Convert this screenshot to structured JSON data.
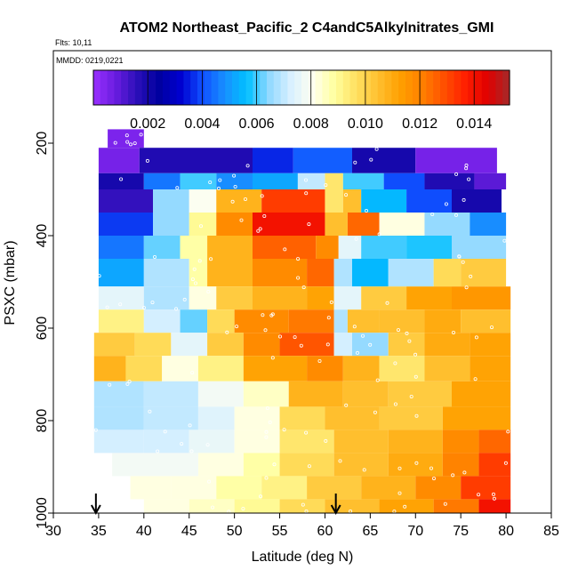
{
  "chart_data": {
    "type": "heatmap",
    "title": "ATOM2 Northeast_Pacific_2 C4andC5Alkylnitrates_GMI",
    "flights_label": "Flts: 10,11",
    "dates_label": "MMDD: 0219,0221",
    "xlabel": "Latitude (deg N)",
    "ylabel": "PSXC (mbar)",
    "xlim": [
      30,
      85
    ],
    "ylim": [
      1000,
      0
    ],
    "x_ticks": [
      "30",
      "35",
      "40",
      "45",
      "50",
      "55",
      "60",
      "65",
      "70",
      "75",
      "80",
      "85"
    ],
    "y_ticks": [
      "200",
      "400",
      "600",
      "800",
      "1000"
    ],
    "colorbar": {
      "range": [
        0,
        0.0153
      ],
      "ticks": [
        "0.002",
        "0.004",
        "0.006",
        "0.008",
        "0.010",
        "0.012",
        "0.014"
      ],
      "colors": [
        "#9a30ff",
        "#6a1de0",
        "#2a0fb8",
        "#0000a0",
        "#0000d0",
        "#1050ff",
        "#1890ff",
        "#00c0ff",
        "#90d8ff",
        "#d8f0ff",
        "#fffff0",
        "#ffffa0",
        "#ffe060",
        "#ffc030",
        "#ffa000",
        "#ff8000",
        "#ff5000",
        "#ff1e00",
        "#e00000",
        "#a52a2a"
      ]
    },
    "arrows": [
      {
        "lat": 34.7
      },
      {
        "lat": 61.2
      }
    ],
    "rows": [
      {
        "p0": 170,
        "p1": 210,
        "segs": [
          {
            "x0": 36.0,
            "x1": 40.0,
            "v": 0.0005
          }
        ]
      },
      {
        "p0": 210,
        "p1": 265,
        "segs": [
          {
            "x0": 35.0,
            "x1": 39.5,
            "v": 0.0006
          },
          {
            "x0": 39.5,
            "x1": 52.0,
            "v": 0.0018
          },
          {
            "x0": 52.0,
            "x1": 56.5,
            "v": 0.0036
          },
          {
            "x0": 56.5,
            "x1": 63.0,
            "v": 0.0042
          },
          {
            "x0": 63.0,
            "x1": 70.0,
            "v": 0.002
          },
          {
            "x0": 70.0,
            "x1": 79.0,
            "v": 0.0006
          }
        ]
      },
      {
        "p0": 265,
        "p1": 300,
        "segs": [
          {
            "x0": 35.0,
            "x1": 40.0,
            "v": 0.002
          },
          {
            "x0": 40.0,
            "x1": 44.0,
            "v": 0.0045
          },
          {
            "x0": 44.0,
            "x1": 48.0,
            "v": 0.006
          },
          {
            "x0": 48.0,
            "x1": 52.0,
            "v": 0.0048
          },
          {
            "x0": 52.0,
            "x1": 57.0,
            "v": 0.0052
          },
          {
            "x0": 57.0,
            "x1": 60.0,
            "v": 0.007
          },
          {
            "x0": 60.0,
            "x1": 62.0,
            "v": 0.0095
          },
          {
            "x0": 62.0,
            "x1": 66.5,
            "v": 0.006
          },
          {
            "x0": 66.5,
            "x1": 71.0,
            "v": 0.004
          },
          {
            "x0": 71.0,
            "x1": 76.5,
            "v": 0.0018
          },
          {
            "x0": 76.5,
            "x1": 80.0,
            "v": 0.001
          }
        ]
      },
      {
        "p0": 300,
        "p1": 350,
        "segs": [
          {
            "x0": 35.0,
            "x1": 41.0,
            "v": 0.0015
          },
          {
            "x0": 41.0,
            "x1": 45.0,
            "v": 0.0065
          },
          {
            "x0": 45.0,
            "x1": 48.0,
            "v": 0.008
          },
          {
            "x0": 48.0,
            "x1": 53.0,
            "v": 0.0108
          },
          {
            "x0": 53.0,
            "x1": 60.0,
            "v": 0.0132
          },
          {
            "x0": 60.0,
            "x1": 62.0,
            "v": 0.0095
          },
          {
            "x0": 62.0,
            "x1": 64.0,
            "v": 0.0105
          },
          {
            "x0": 64.0,
            "x1": 69.0,
            "v": 0.0055
          },
          {
            "x0": 69.0,
            "x1": 74.0,
            "v": 0.004
          },
          {
            "x0": 74.0,
            "x1": 79.5,
            "v": 0.002
          }
        ]
      },
      {
        "p0": 350,
        "p1": 400,
        "segs": [
          {
            "x0": 35.0,
            "x1": 41.0,
            "v": 0.0038
          },
          {
            "x0": 41.0,
            "x1": 45.0,
            "v": 0.0065
          },
          {
            "x0": 45.0,
            "x1": 48.0,
            "v": 0.009
          },
          {
            "x0": 48.0,
            "x1": 52.0,
            "v": 0.0118
          },
          {
            "x0": 52.0,
            "x1": 60.0,
            "v": 0.014
          },
          {
            "x0": 60.0,
            "x1": 62.5,
            "v": 0.0105
          },
          {
            "x0": 62.5,
            "x1": 66.0,
            "v": 0.0125
          },
          {
            "x0": 66.0,
            "x1": 71.0,
            "v": 0.0082
          },
          {
            "x0": 71.0,
            "x1": 76.0,
            "v": 0.0065
          },
          {
            "x0": 76.0,
            "x1": 80.0,
            "v": 0.0048
          }
        ]
      },
      {
        "p0": 400,
        "p1": 450,
        "segs": [
          {
            "x0": 35.0,
            "x1": 40.0,
            "v": 0.0045
          },
          {
            "x0": 40.0,
            "x1": 44.0,
            "v": 0.0062
          },
          {
            "x0": 44.0,
            "x1": 47.0,
            "v": 0.0088
          },
          {
            "x0": 47.0,
            "x1": 52.0,
            "v": 0.0108
          },
          {
            "x0": 52.0,
            "x1": 59.0,
            "v": 0.0126
          },
          {
            "x0": 59.0,
            "x1": 61.5,
            "v": 0.0118
          },
          {
            "x0": 61.5,
            "x1": 64.0,
            "v": 0.0075
          },
          {
            "x0": 64.0,
            "x1": 69.0,
            "v": 0.006
          },
          {
            "x0": 69.0,
            "x1": 74.0,
            "v": 0.0058
          },
          {
            "x0": 74.0,
            "x1": 80.0,
            "v": 0.0065
          }
        ]
      },
      {
        "p0": 450,
        "p1": 510,
        "segs": [
          {
            "x0": 35.0,
            "x1": 40.0,
            "v": 0.0052
          },
          {
            "x0": 40.0,
            "x1": 45.0,
            "v": 0.0068
          },
          {
            "x0": 45.0,
            "x1": 47.0,
            "v": 0.0088
          },
          {
            "x0": 47.0,
            "x1": 52.0,
            "v": 0.0108
          },
          {
            "x0": 52.0,
            "x1": 58.0,
            "v": 0.0118
          },
          {
            "x0": 58.0,
            "x1": 61.0,
            "v": 0.0125
          },
          {
            "x0": 61.0,
            "x1": 63.0,
            "v": 0.0068
          },
          {
            "x0": 63.0,
            "x1": 67.0,
            "v": 0.0055
          },
          {
            "x0": 67.0,
            "x1": 72.0,
            "v": 0.0068
          },
          {
            "x0": 72.0,
            "x1": 75.0,
            "v": 0.0098
          },
          {
            "x0": 75.0,
            "x1": 80.0,
            "v": 0.0102
          }
        ]
      },
      {
        "p0": 510,
        "p1": 560,
        "segs": [
          {
            "x0": 35.0,
            "x1": 40.0,
            "v": 0.0075
          },
          {
            "x0": 40.0,
            "x1": 45.0,
            "v": 0.0068
          },
          {
            "x0": 45.0,
            "x1": 48.0,
            "v": 0.0082
          },
          {
            "x0": 48.0,
            "x1": 52.0,
            "v": 0.0102
          },
          {
            "x0": 52.0,
            "x1": 58.0,
            "v": 0.0108
          },
          {
            "x0": 58.0,
            "x1": 61.0,
            "v": 0.0112
          },
          {
            "x0": 61.0,
            "x1": 64.0,
            "v": 0.0075
          },
          {
            "x0": 64.0,
            "x1": 69.0,
            "v": 0.0102
          },
          {
            "x0": 69.0,
            "x1": 74.0,
            "v": 0.0112
          },
          {
            "x0": 74.0,
            "x1": 80.5,
            "v": 0.0115
          }
        ]
      },
      {
        "p0": 560,
        "p1": 610,
        "segs": [
          {
            "x0": 35.0,
            "x1": 40.0,
            "v": 0.0092
          },
          {
            "x0": 40.0,
            "x1": 44.0,
            "v": 0.0072
          },
          {
            "x0": 44.0,
            "x1": 47.0,
            "v": 0.0062
          },
          {
            "x0": 47.0,
            "x1": 50.0,
            "v": 0.0098
          },
          {
            "x0": 50.0,
            "x1": 56.0,
            "v": 0.0118
          },
          {
            "x0": 56.0,
            "x1": 61.0,
            "v": 0.0122
          },
          {
            "x0": 61.0,
            "x1": 62.5,
            "v": 0.0068
          },
          {
            "x0": 62.5,
            "x1": 66.0,
            "v": 0.0105
          },
          {
            "x0": 66.0,
            "x1": 71.0,
            "v": 0.0105
          },
          {
            "x0": 71.0,
            "x1": 75.0,
            "v": 0.011
          },
          {
            "x0": 75.0,
            "x1": 80.5,
            "v": 0.0105
          }
        ]
      },
      {
        "p0": 610,
        "p1": 660,
        "segs": [
          {
            "x0": 34.5,
            "x1": 39.0,
            "v": 0.0102
          },
          {
            "x0": 39.0,
            "x1": 43.0,
            "v": 0.0098
          },
          {
            "x0": 43.0,
            "x1": 47.0,
            "v": 0.0075
          },
          {
            "x0": 47.0,
            "x1": 51.0,
            "v": 0.0102
          },
          {
            "x0": 51.0,
            "x1": 55.0,
            "v": 0.0118
          },
          {
            "x0": 55.0,
            "x1": 61.0,
            "v": 0.0128
          },
          {
            "x0": 61.0,
            "x1": 63.0,
            "v": 0.0072
          },
          {
            "x0": 63.0,
            "x1": 67.0,
            "v": 0.0065
          },
          {
            "x0": 67.0,
            "x1": 71.0,
            "v": 0.0102
          },
          {
            "x0": 71.0,
            "x1": 76.0,
            "v": 0.011
          },
          {
            "x0": 76.0,
            "x1": 80.5,
            "v": 0.0112
          }
        ]
      },
      {
        "p0": 660,
        "p1": 715,
        "segs": [
          {
            "x0": 34.5,
            "x1": 38.0,
            "v": 0.0108
          },
          {
            "x0": 38.0,
            "x1": 42.0,
            "v": 0.0098
          },
          {
            "x0": 42.0,
            "x1": 46.0,
            "v": 0.0082
          },
          {
            "x0": 46.0,
            "x1": 51.0,
            "v": 0.0092
          },
          {
            "x0": 51.0,
            "x1": 58.0,
            "v": 0.0112
          },
          {
            "x0": 58.0,
            "x1": 62.0,
            "v": 0.0118
          },
          {
            "x0": 62.0,
            "x1": 66.0,
            "v": 0.0108
          },
          {
            "x0": 66.0,
            "x1": 71.0,
            "v": 0.0095
          },
          {
            "x0": 71.0,
            "x1": 76.0,
            "v": 0.0105
          },
          {
            "x0": 76.0,
            "x1": 80.5,
            "v": 0.0112
          }
        ]
      },
      {
        "p0": 715,
        "p1": 770,
        "segs": [
          {
            "x0": 34.5,
            "x1": 40.0,
            "v": 0.0068
          },
          {
            "x0": 40.0,
            "x1": 46.0,
            "v": 0.007
          },
          {
            "x0": 46.0,
            "x1": 51.0,
            "v": 0.0078
          },
          {
            "x0": 51.0,
            "x1": 56.0,
            "v": 0.0085
          },
          {
            "x0": 56.0,
            "x1": 62.0,
            "v": 0.0108
          },
          {
            "x0": 62.0,
            "x1": 67.0,
            "v": 0.0105
          },
          {
            "x0": 67.0,
            "x1": 74.0,
            "v": 0.0102
          },
          {
            "x0": 74.0,
            "x1": 80.5,
            "v": 0.0112
          }
        ]
      },
      {
        "p0": 770,
        "p1": 820,
        "segs": [
          {
            "x0": 34.5,
            "x1": 40.0,
            "v": 0.0068
          },
          {
            "x0": 40.0,
            "x1": 46.0,
            "v": 0.007
          },
          {
            "x0": 46.0,
            "x1": 50.0,
            "v": 0.0074
          },
          {
            "x0": 50.0,
            "x1": 55.0,
            "v": 0.0082
          },
          {
            "x0": 55.0,
            "x1": 60.0,
            "v": 0.0098
          },
          {
            "x0": 60.0,
            "x1": 66.0,
            "v": 0.0105
          },
          {
            "x0": 66.0,
            "x1": 73.0,
            "v": 0.0102
          },
          {
            "x0": 73.0,
            "x1": 80.5,
            "v": 0.0112
          }
        ]
      },
      {
        "p0": 820,
        "p1": 870,
        "segs": [
          {
            "x0": 34.5,
            "x1": 40.0,
            "v": 0.0072
          },
          {
            "x0": 40.0,
            "x1": 45.0,
            "v": 0.0072
          },
          {
            "x0": 45.0,
            "x1": 50.0,
            "v": 0.0076
          },
          {
            "x0": 50.0,
            "x1": 55.0,
            "v": 0.0082
          },
          {
            "x0": 55.0,
            "x1": 61.0,
            "v": 0.0095
          },
          {
            "x0": 61.0,
            "x1": 67.0,
            "v": 0.0105
          },
          {
            "x0": 67.0,
            "x1": 73.0,
            "v": 0.0108
          },
          {
            "x0": 73.0,
            "x1": 77.0,
            "v": 0.0118
          },
          {
            "x0": 77.0,
            "x1": 80.5,
            "v": 0.0125
          }
        ]
      },
      {
        "p0": 870,
        "p1": 920,
        "segs": [
          {
            "x0": 36.5,
            "x1": 41.0,
            "v": 0.0078
          },
          {
            "x0": 41.0,
            "x1": 46.0,
            "v": 0.0078
          },
          {
            "x0": 46.0,
            "x1": 51.0,
            "v": 0.0082
          },
          {
            "x0": 51.0,
            "x1": 55.0,
            "v": 0.0088
          },
          {
            "x0": 55.0,
            "x1": 61.0,
            "v": 0.0098
          },
          {
            "x0": 61.0,
            "x1": 67.0,
            "v": 0.0105
          },
          {
            "x0": 67.0,
            "x1": 73.0,
            "v": 0.011
          },
          {
            "x0": 73.0,
            "x1": 77.0,
            "v": 0.012
          },
          {
            "x0": 77.0,
            "x1": 80.5,
            "v": 0.0132
          }
        ]
      },
      {
        "p0": 920,
        "p1": 970,
        "segs": [
          {
            "x0": 38.5,
            "x1": 43.0,
            "v": 0.0082
          },
          {
            "x0": 43.0,
            "x1": 48.0,
            "v": 0.0082
          },
          {
            "x0": 48.0,
            "x1": 53.0,
            "v": 0.0088
          },
          {
            "x0": 53.0,
            "x1": 58.0,
            "v": 0.0092
          },
          {
            "x0": 58.0,
            "x1": 64.0,
            "v": 0.0102
          },
          {
            "x0": 64.0,
            "x1": 70.0,
            "v": 0.0108
          },
          {
            "x0": 70.0,
            "x1": 75.0,
            "v": 0.0118
          },
          {
            "x0": 75.0,
            "x1": 80.5,
            "v": 0.0132
          }
        ]
      },
      {
        "p0": 970,
        "p1": 1000,
        "segs": [
          {
            "x0": 40.0,
            "x1": 45.0,
            "v": 0.0082
          },
          {
            "x0": 45.0,
            "x1": 50.0,
            "v": 0.0085
          },
          {
            "x0": 50.0,
            "x1": 55.0,
            "v": 0.009
          },
          {
            "x0": 55.0,
            "x1": 60.0,
            "v": 0.0098
          },
          {
            "x0": 60.0,
            "x1": 66.0,
            "v": 0.0105
          },
          {
            "x0": 66.0,
            "x1": 72.0,
            "v": 0.0112
          },
          {
            "x0": 72.0,
            "x1": 77.0,
            "v": 0.0122
          },
          {
            "x0": 77.0,
            "x1": 80.5,
            "v": 0.014
          }
        ]
      }
    ]
  }
}
